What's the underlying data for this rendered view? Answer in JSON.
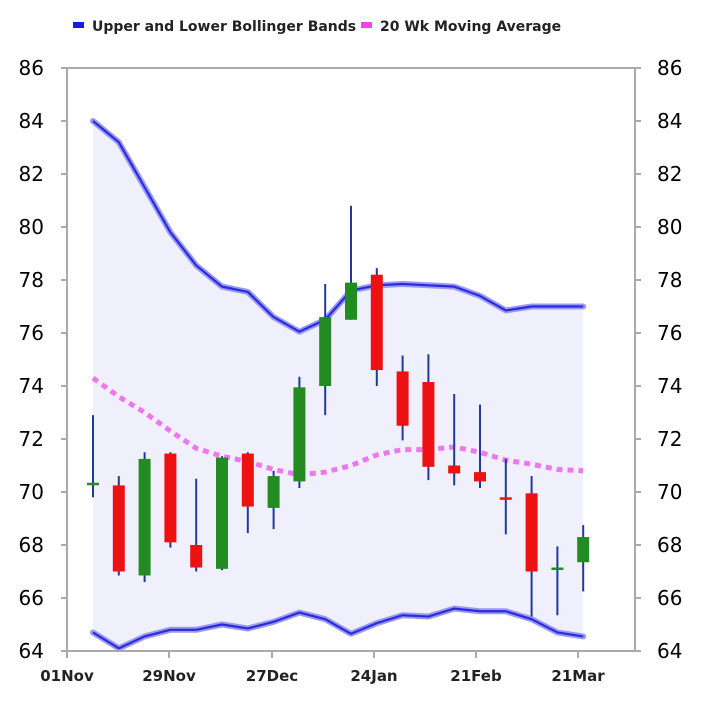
{
  "chart_data": {
    "type": "candlestick",
    "legend": [
      {
        "label": "Upper and Lower Bollinger Bands",
        "color": "#1a1adc"
      },
      {
        "label": "20 Wk Moving Average",
        "color": "#ee44ee"
      }
    ],
    "colors": {
      "up": "#228b22",
      "down": "#ee1111",
      "wick": "#1e3a9a",
      "band_line": "#2a2ae0",
      "band_halo": "#9a9af0",
      "band_fill": "#f0f0fc",
      "moving_average": "#ee77ee",
      "frame": "#aaaaaa"
    },
    "x_ticks": [
      "01Nov",
      "29Nov",
      "27Dec",
      "24Jan",
      "21Feb",
      "21Mar"
    ],
    "y_ticks": [
      64,
      66,
      68,
      70,
      72,
      74,
      76,
      78,
      80,
      82,
      84,
      86
    ],
    "ylim": [
      64,
      86
    ],
    "grid": false,
    "legend_position": "top",
    "candles": [
      {
        "open": 70.3,
        "high": 72.9,
        "low": 69.8,
        "close": 70.35
      },
      {
        "open": 70.25,
        "high": 70.6,
        "low": 66.85,
        "close": 67.0
      },
      {
        "open": 66.85,
        "high": 71.5,
        "low": 66.6,
        "close": 71.25
      },
      {
        "open": 71.45,
        "high": 71.5,
        "low": 67.9,
        "close": 68.1
      },
      {
        "open": 68.0,
        "high": 70.5,
        "low": 67.0,
        "close": 67.15
      },
      {
        "open": 67.1,
        "high": 71.35,
        "low": 67.05,
        "close": 71.3
      },
      {
        "open": 71.45,
        "high": 71.5,
        "low": 68.45,
        "close": 69.45
      },
      {
        "open": 69.4,
        "high": 70.8,
        "low": 68.6,
        "close": 70.6
      },
      {
        "open": 70.4,
        "high": 74.35,
        "low": 70.15,
        "close": 73.95
      },
      {
        "open": 74.0,
        "high": 77.85,
        "low": 72.9,
        "close": 76.6
      },
      {
        "open": 76.5,
        "high": 80.8,
        "low": 76.5,
        "close": 77.9
      },
      {
        "open": 78.2,
        "high": 78.45,
        "low": 74.0,
        "close": 74.6
      },
      {
        "open": 74.55,
        "high": 75.15,
        "low": 71.95,
        "close": 72.5
      },
      {
        "open": 74.15,
        "high": 75.2,
        "low": 70.45,
        "close": 70.95
      },
      {
        "open": 71.0,
        "high": 73.7,
        "low": 70.25,
        "close": 70.7
      },
      {
        "open": 70.75,
        "high": 73.3,
        "low": 70.15,
        "close": 70.4
      },
      {
        "open": 69.8,
        "high": 71.25,
        "low": 68.4,
        "close": 69.75
      },
      {
        "open": 69.95,
        "high": 70.6,
        "low": 65.3,
        "close": 67.0
      },
      {
        "open": 67.1,
        "high": 67.95,
        "low": 65.35,
        "close": 67.15
      },
      {
        "open": 67.35,
        "high": 68.75,
        "low": 66.25,
        "close": 68.3
      }
    ],
    "upper_band": [
      84.0,
      83.2,
      81.5,
      79.8,
      78.55,
      77.75,
      77.55,
      76.6,
      76.05,
      76.5,
      77.6,
      77.8,
      77.85,
      77.8,
      77.75,
      77.4,
      76.85,
      77.0,
      77.0,
      77.0
    ],
    "lower_band": [
      64.7,
      64.1,
      64.55,
      64.8,
      64.8,
      65.0,
      64.85,
      65.1,
      65.45,
      65.2,
      64.65,
      65.05,
      65.35,
      65.3,
      65.6,
      65.5,
      65.5,
      65.2,
      64.7,
      64.55
    ],
    "moving_average": [
      74.3,
      73.6,
      73.0,
      72.3,
      71.65,
      71.35,
      71.15,
      70.85,
      70.65,
      70.75,
      71.0,
      71.4,
      71.6,
      71.6,
      71.7,
      71.5,
      71.2,
      71.05,
      70.85,
      70.8
    ]
  }
}
